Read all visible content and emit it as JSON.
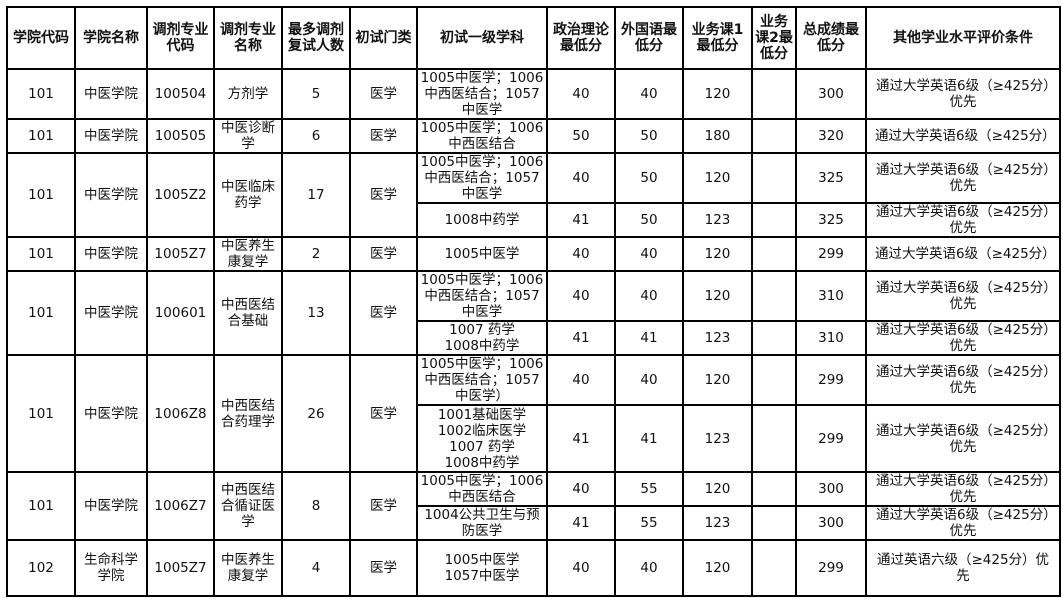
{
  "headers": [
    "学院代码",
    "学院名称",
    "调剂专业代码",
    "调剂专业名称",
    "最多调剂复试人数",
    "初试门类",
    "初试一级学科",
    "政治理论最低分",
    "外国语最低分",
    "业务课1最低分",
    "业务课2最低分",
    "总成绩最低分",
    "其他学业水平评价条件"
  ],
  "groups": [
    {
      "college_code": "101",
      "college_name": "中医学院",
      "major_code": "100504",
      "major_name": "方剂学",
      "max_count": "5",
      "category": "医学",
      "rows": [
        {
          "subjects": "1005中医学；1006中西医结合；1057中医学",
          "politics": "40",
          "foreign": "40",
          "course1": "120",
          "course2": "",
          "total": "300",
          "other": "通过大学英语6级（≥425分）优先"
        }
      ]
    },
    {
      "college_code": "101",
      "college_name": "中医学院",
      "major_code": "100505",
      "major_name": "中医诊断学",
      "max_count": "6",
      "category": "医学",
      "rows": [
        {
          "subjects": "1005中医学；1006中西医结合",
          "politics": "50",
          "foreign": "50",
          "course1": "180",
          "course2": "",
          "total": "320",
          "other": "通过大学英语6级（≥425分）"
        }
      ]
    },
    {
      "college_code": "101",
      "college_name": "中医学院",
      "major_code": "1005Z2",
      "major_name": "中医临床药学",
      "max_count": "17",
      "category": "医学",
      "rows": [
        {
          "subjects": "1005中医学；1006中西医结合；1057中医学",
          "politics": "40",
          "foreign": "50",
          "course1": "120",
          "course2": "",
          "total": "325",
          "other": "通过大学英语6级（≥425分）优先"
        },
        {
          "subjects": "1008中药学",
          "politics": "41",
          "foreign": "50",
          "course1": "123",
          "course2": "",
          "total": "325",
          "other": "通过大学英语6级（≥425分）优先"
        }
      ]
    },
    {
      "college_code": "101",
      "college_name": "中医学院",
      "major_code": "1005Z7",
      "major_name": "中医养生康复学",
      "max_count": "2",
      "category": "医学",
      "rows": [
        {
          "subjects": "1005中医学",
          "politics": "40",
          "foreign": "40",
          "course1": "120",
          "course2": "",
          "total": "299",
          "other": "通过大学英语6级（≥425分）"
        }
      ]
    },
    {
      "college_code": "101",
      "college_name": "中医学院",
      "major_code": "100601",
      "major_name": "中西医结合基础",
      "max_count": "13",
      "category": "医学",
      "rows": [
        {
          "subjects": "1005中医学；1006中西医结合；1057中医学",
          "politics": "40",
          "foreign": "40",
          "course1": "120",
          "course2": "",
          "total": "310",
          "other": "通过大学英语6级（≥425分）优先"
        },
        {
          "subjects": "1007 药学\n1008中药学",
          "politics": "41",
          "foreign": "41",
          "course1": "123",
          "course2": "",
          "total": "310",
          "other": "通过大学英语6级（≥425分）优先"
        }
      ]
    },
    {
      "college_code": "101",
      "college_name": "中医学院",
      "major_code": "1006Z8",
      "major_name": "中西医结合药理学",
      "max_count": "26",
      "category": "医学",
      "rows": [
        {
          "subjects": "1005中医学；1006中西医结合；1057中医学）",
          "politics": "40",
          "foreign": "40",
          "course1": "120",
          "course2": "",
          "total": "299",
          "other": "通过大学英语6级（≥425分）优先"
        },
        {
          "subjects": "1001基础医学\n1002临床医学\n1007 药学\n1008中药学",
          "politics": "41",
          "foreign": "41",
          "course1": "123",
          "course2": "",
          "total": "299",
          "other": "通过大学英语6级（≥425分）优先"
        }
      ]
    },
    {
      "college_code": "101",
      "college_name": "中医学院",
      "major_code": "1006Z7",
      "major_name": "中西医结合循证医学",
      "max_count": "8",
      "category": "医学",
      "rows": [
        {
          "subjects": "1005中医学；1006中西医结合",
          "politics": "40",
          "foreign": "55",
          "course1": "120",
          "course2": "",
          "total": "300",
          "other": "通过大学英语6级（≥425分）优先"
        },
        {
          "subjects": "1004公共卫生与预防医学",
          "politics": "41",
          "foreign": "55",
          "course1": "123",
          "course2": "",
          "total": "300",
          "other": "通过大学英语6级（≥425分）优先"
        }
      ]
    },
    {
      "college_code": "102",
      "college_name": "生命科学学院",
      "major_code": "1005Z7",
      "major_name": "中医养生康复学",
      "max_count": "4",
      "category": "医学",
      "rows": [
        {
          "subjects": "1005中医学\n1057中医学",
          "politics": "40",
          "foreign": "40",
          "course1": "120",
          "course2": "",
          "total": "299",
          "other": "通过英语六级（≥425分）优先"
        }
      ]
    }
  ]
}
